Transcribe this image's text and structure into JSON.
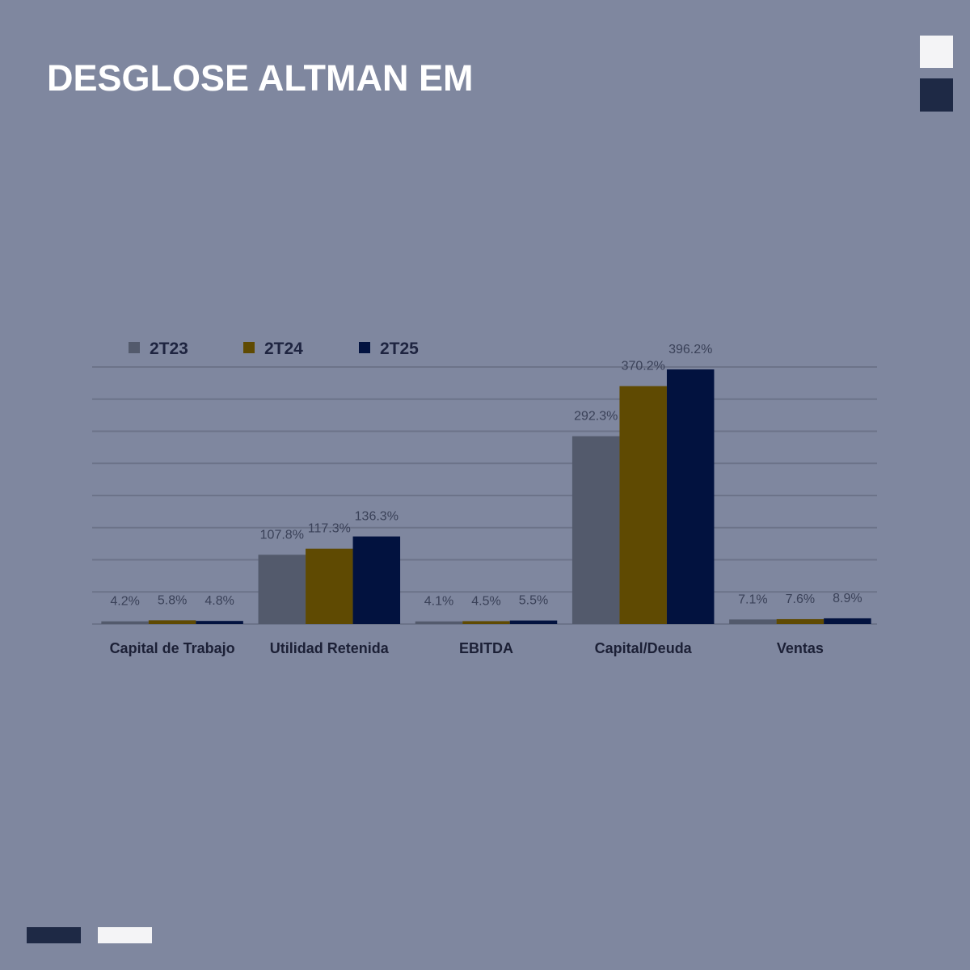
{
  "header": {
    "title": "DESGLOSE ALTMAN EM"
  },
  "colors": {
    "background": "#7f879f",
    "title": "#ffffff",
    "gridline": "#6c7389",
    "deco_light": "#f4f4f6",
    "deco_dark": "#1e2945"
  },
  "chart_data": {
    "type": "bar",
    "title": "",
    "xlabel": "",
    "ylabel": "",
    "ylim": [
      0,
      400
    ],
    "grid": true,
    "legend_position": "top-left",
    "categories": [
      "Capital de Trabajo",
      "Utilidad Retenida",
      "EBITDA",
      "Capital/Deuda",
      "Ventas"
    ],
    "series": [
      {
        "name": "2T23",
        "color": "#535a6c",
        "values": [
          4.2,
          107.8,
          4.1,
          292.3,
          7.1
        ],
        "labels": [
          "4.2%",
          "107.8%",
          "4.1%",
          "292.3%",
          "7.1%"
        ]
      },
      {
        "name": "2T24",
        "color": "#5f4a02",
        "values": [
          5.8,
          117.3,
          4.5,
          370.2,
          7.6
        ],
        "labels": [
          "5.8%",
          "117.3%",
          "4.5%",
          "370.2%",
          "7.6%"
        ]
      },
      {
        "name": "2T25",
        "color": "#02123f",
        "values": [
          4.8,
          136.3,
          5.5,
          396.2,
          8.9
        ],
        "labels": [
          "4.8%",
          "136.3%",
          "5.5%",
          "396.2%",
          "8.9%"
        ]
      }
    ]
  }
}
